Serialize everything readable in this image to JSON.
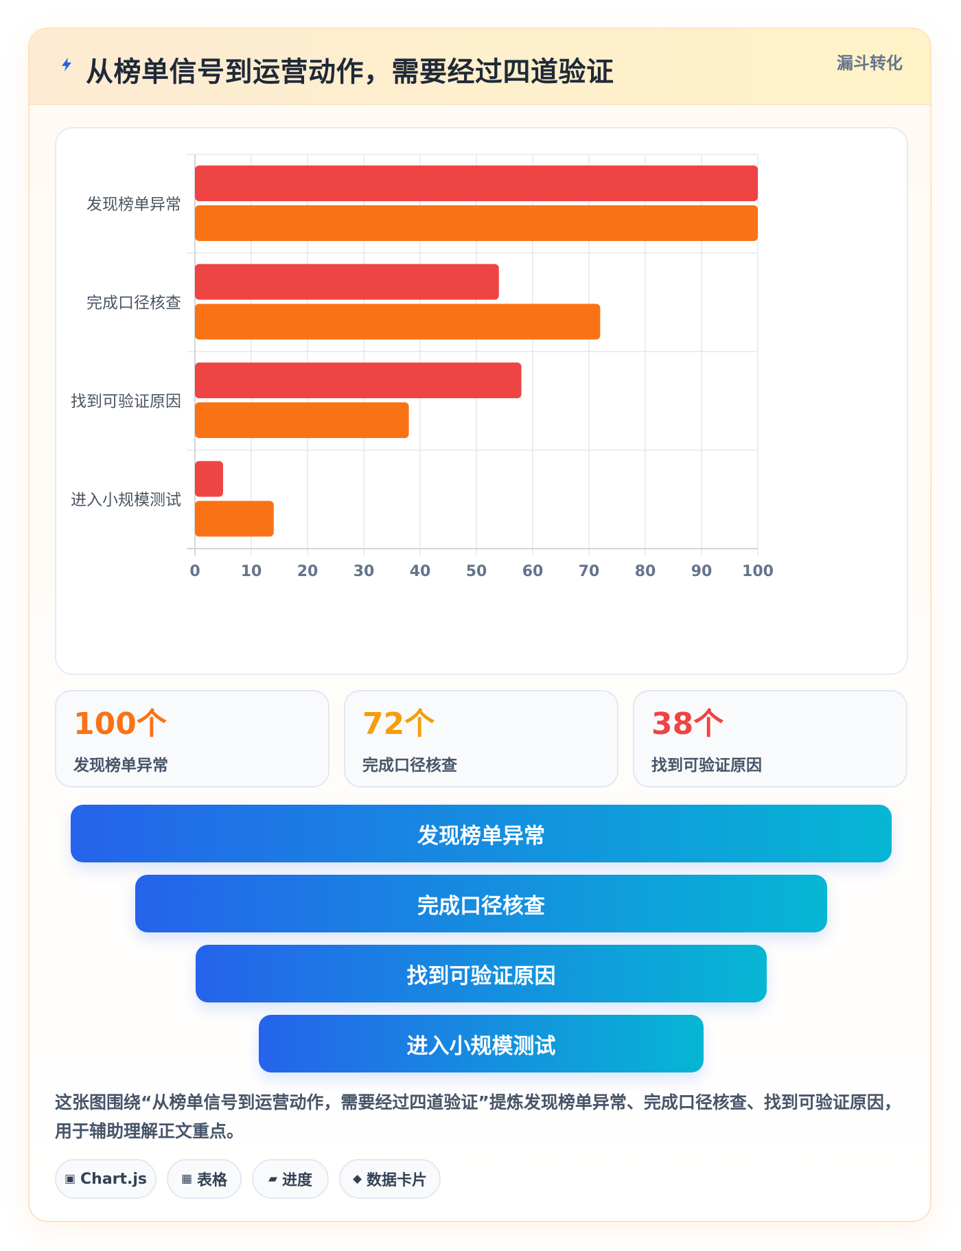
{
  "header": {
    "title": "从榜单信号到运营动作，需要经过四道验证",
    "tag": "漏斗转化"
  },
  "chart_data": {
    "type": "bar",
    "orientation": "horizontal",
    "categories": [
      "发现榜单异常",
      "完成口径核查",
      "找到可验证原因",
      "进入小规模测试"
    ],
    "series": [
      {
        "color": "#ef4444",
        "values": [
          100,
          54,
          58,
          5
        ]
      },
      {
        "color": "#f97316",
        "values": [
          100,
          72,
          38,
          14
        ]
      }
    ],
    "xlim": [
      0,
      100
    ],
    "xticks": [
      0,
      10,
      20,
      30,
      40,
      50,
      60,
      70,
      80,
      90,
      100
    ],
    "grid": true,
    "legend": "none"
  },
  "stats": [
    {
      "value": "100个",
      "label": "发现榜单异常",
      "color": "#f97316"
    },
    {
      "value": "72个",
      "label": "完成口径核查",
      "color": "#f59e0b"
    },
    {
      "value": "38个",
      "label": "找到可验证原因",
      "color": "#ef4444"
    }
  ],
  "funnel": [
    "发现榜单异常",
    "完成口径核查",
    "找到可验证原因",
    "进入小规模测试"
  ],
  "description": "这张图围绕“从榜单信号到运营动作，需要经过四道验证”提炼发现榜单异常、完成口径核查、找到可验证原因，用于辅助理解正文重点。",
  "chips": [
    {
      "icon": "▣",
      "icon_name": "chart-icon",
      "label": "Chart.js"
    },
    {
      "icon": "▦",
      "icon_name": "table-icon",
      "label": "表格"
    },
    {
      "icon": "▰",
      "icon_name": "progress-icon",
      "label": "进度"
    },
    {
      "icon": "◆",
      "icon_name": "data-card-icon",
      "label": "数据卡片"
    }
  ]
}
